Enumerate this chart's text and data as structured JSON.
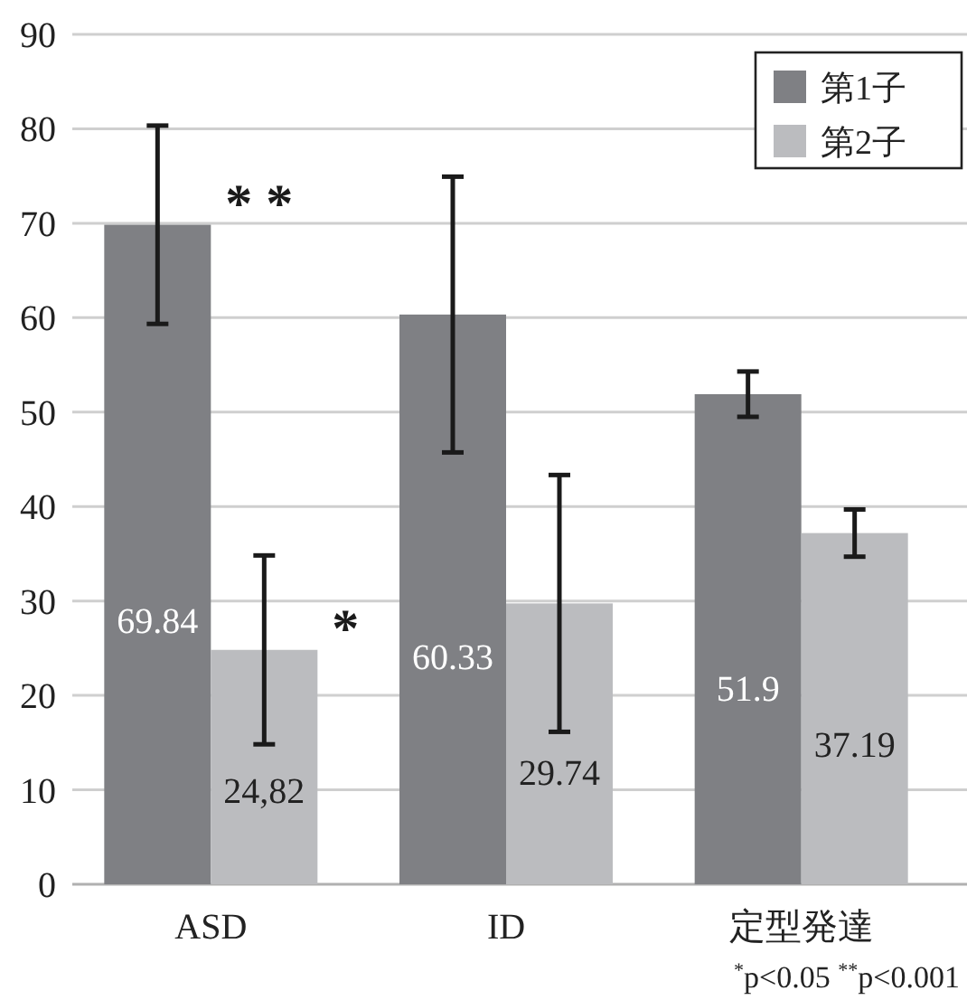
{
  "chart_data": {
    "type": "bar",
    "categories": [
      "ASD",
      "ID",
      "定型発達"
    ],
    "series": [
      {
        "name": "第1子",
        "color": "#7f8084",
        "values": [
          69.84,
          60.33,
          51.9
        ],
        "errors": [
          10.5,
          14.6,
          2.4
        ],
        "value_labels": [
          "69.84",
          "60.33",
          "51.9"
        ]
      },
      {
        "name": "第2子",
        "color": "#bbbcbf",
        "values": [
          24.82,
          29.74,
          37.19
        ],
        "errors": [
          10,
          13.6,
          2.5
        ],
        "value_labels": [
          "24,82",
          "29.74",
          "37.19"
        ]
      }
    ],
    "ylim": [
      0,
      90
    ],
    "yticks": [
      0,
      10,
      20,
      30,
      40,
      50,
      60,
      70,
      80,
      90
    ],
    "grid": "y",
    "legend": "top right",
    "annotations": [
      "* *",
      "*",
      "$^{*}$p<0.05  $^{**}$p<0.001"
    ]
  }
}
